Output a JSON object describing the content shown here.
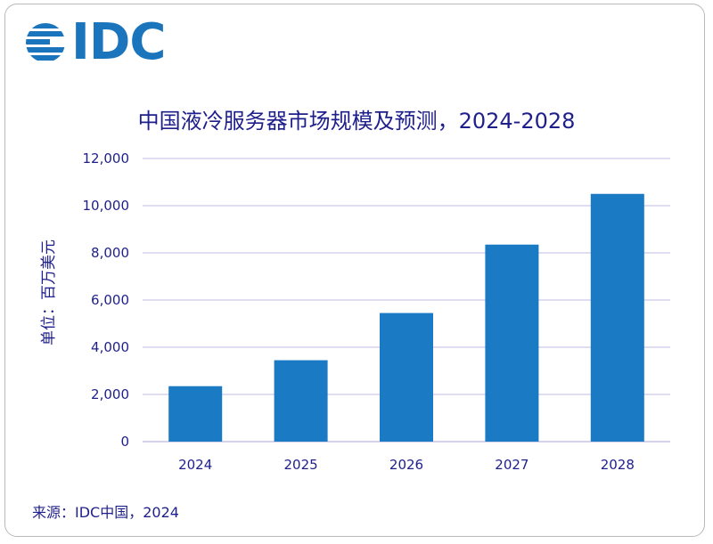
{
  "logo": {
    "text": "IDC"
  },
  "chart_data": {
    "type": "bar",
    "title": "中国液冷服务器市场规模及预测，2024-2028",
    "ylabel": "单位：百万美元",
    "xlabel": "",
    "categories": [
      "2024",
      "2025",
      "2026",
      "2027",
      "2028"
    ],
    "values": [
      2350,
      3450,
      5450,
      8350,
      10500
    ],
    "ylim": [
      0,
      12000
    ],
    "yticks": [
      "0",
      "2,000",
      "4,000",
      "6,000",
      "8,000",
      "10,000",
      "12,000"
    ],
    "grid": true,
    "bar_color": "#1a7bc4",
    "grid_color": "#d6d0ee"
  },
  "source": "来源：IDC中国，2024"
}
